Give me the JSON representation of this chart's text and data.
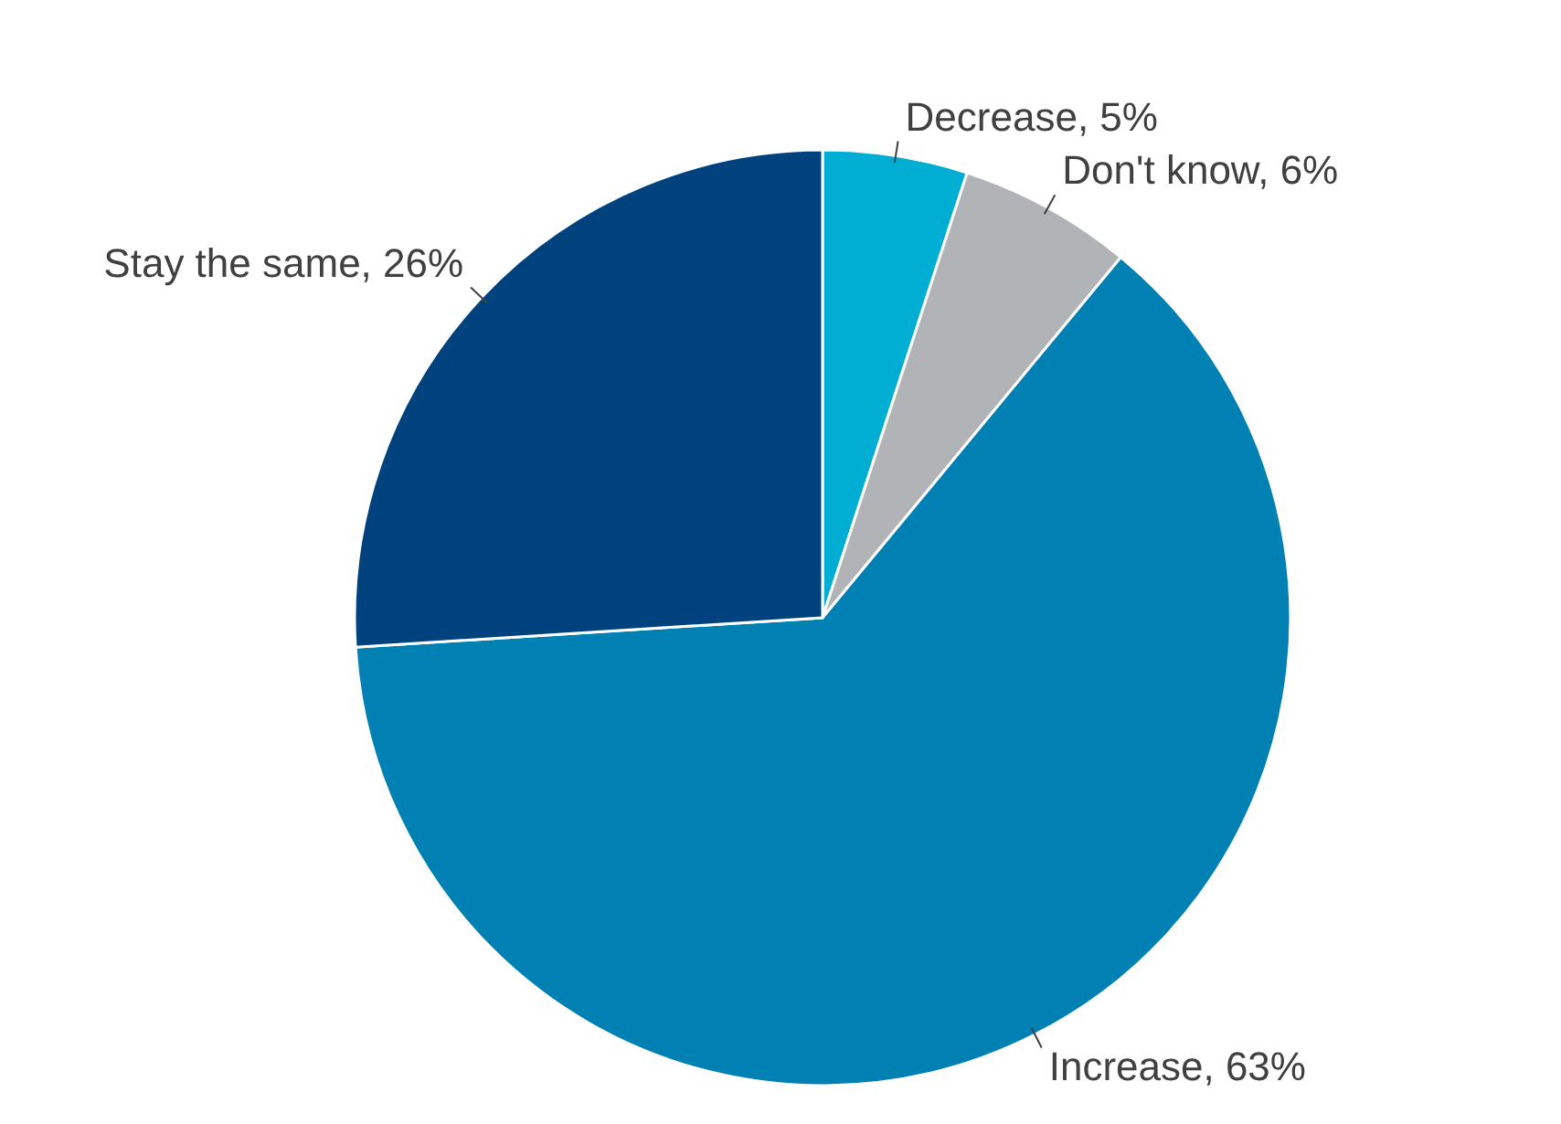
{
  "chart_data": {
    "type": "pie",
    "categories": [
      "Decrease, 5%",
      "Don't know, 6%",
      "Increase, 63%",
      "Stay the same, 26%"
    ],
    "values": [
      5,
      6,
      63,
      26
    ],
    "colors": [
      "#00aed4",
      "#b1b3b6",
      "#0080b3",
      "#00427e"
    ]
  }
}
